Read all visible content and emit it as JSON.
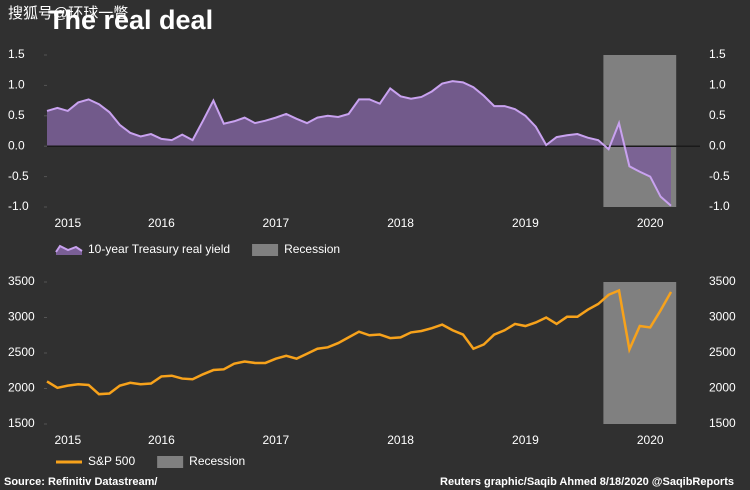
{
  "watermark": "搜狐号@环球一瞥",
  "title": "The real deal",
  "source": "Source: Refinitiv Datastream/",
  "credit": "Reuters graphic/Saqib Ahmed 8/18/2020 @SaqibReports",
  "chart_data": [
    {
      "type": "area",
      "categories": [
        null,
        null,
        "2015",
        null,
        null,
        null,
        null,
        null,
        null,
        null,
        null,
        "2016",
        null,
        null,
        null,
        null,
        null,
        null,
        null,
        null,
        null,
        null,
        "2017",
        null,
        null,
        null,
        null,
        null,
        null,
        null,
        null,
        null,
        null,
        null,
        "2018",
        null,
        null,
        null,
        null,
        null,
        null,
        null,
        null,
        null,
        null,
        null,
        "2019",
        null,
        null,
        null,
        null,
        null,
        null,
        null,
        null,
        null,
        null,
        null,
        "2020",
        null,
        null
      ],
      "series": [
        {
          "name": "10-year Treasury real yield",
          "color": "#c9a2f0",
          "fill": "#7a5f96",
          "values": [
            0.58,
            0.63,
            0.58,
            0.72,
            0.77,
            0.69,
            0.56,
            0.35,
            0.22,
            0.16,
            0.2,
            0.12,
            0.1,
            0.19,
            0.1,
            0.42,
            0.75,
            0.37,
            0.41,
            0.47,
            0.38,
            0.42,
            0.47,
            0.53,
            0.45,
            0.38,
            0.47,
            0.5,
            0.48,
            0.53,
            0.77,
            0.77,
            0.7,
            0.95,
            0.82,
            0.78,
            0.81,
            0.9,
            1.03,
            1.07,
            1.05,
            0.97,
            0.83,
            0.66,
            0.66,
            0.61,
            0.5,
            0.32,
            0.02,
            0.15,
            0.18,
            0.2,
            0.14,
            0.1,
            -0.05,
            0.38,
            -0.33,
            -0.42,
            -0.5,
            -0.83,
            -0.98
          ]
        }
      ],
      "recession": {
        "name": "Recession",
        "color": "#808080",
        "span": [
          54,
          60
        ]
      },
      "ylim": [
        -1,
        1.5
      ],
      "yticks": [
        1.5,
        {
          "value": 1,
          "label": "1.0"
        },
        0.5,
        {
          "value": 0,
          "label": "0.0"
        },
        -0.5,
        {
          "value": -1,
          "label": "-1.0"
        }
      ]
    },
    {
      "type": "line",
      "categories": [
        null,
        null,
        "2015",
        null,
        null,
        null,
        null,
        null,
        null,
        null,
        null,
        "2016",
        null,
        null,
        null,
        null,
        null,
        null,
        null,
        null,
        null,
        null,
        "2017",
        null,
        null,
        null,
        null,
        null,
        null,
        null,
        null,
        null,
        null,
        null,
        "2018",
        null,
        null,
        null,
        null,
        null,
        null,
        null,
        null,
        null,
        null,
        null,
        "2019",
        null,
        null,
        null,
        null,
        null,
        null,
        null,
        null,
        null,
        null,
        null,
        "2020",
        null,
        null
      ],
      "series": [
        {
          "name": "S&P 500",
          "color": "#f7a21b",
          "values": [
            2100,
            2010,
            2040,
            2060,
            2050,
            1920,
            1930,
            2040,
            2080,
            2060,
            2070,
            2170,
            2180,
            2140,
            2130,
            2200,
            2260,
            2270,
            2350,
            2380,
            2360,
            2360,
            2420,
            2460,
            2420,
            2490,
            2560,
            2580,
            2640,
            2720,
            2800,
            2750,
            2760,
            2710,
            2720,
            2790,
            2810,
            2850,
            2900,
            2820,
            2760,
            2560,
            2620,
            2760,
            2820,
            2910,
            2880,
            2930,
            3000,
            2910,
            3010,
            3010,
            3110,
            3190,
            3320,
            3380,
            2550,
            2880,
            2860,
            3100,
            3360
          ]
        }
      ],
      "recession": {
        "name": "Recession",
        "color": "#808080",
        "span": [
          54,
          60
        ]
      },
      "ylim": [
        1500,
        3500
      ],
      "yticks": [
        3500,
        3000,
        2500,
        2000,
        1500
      ]
    }
  ]
}
